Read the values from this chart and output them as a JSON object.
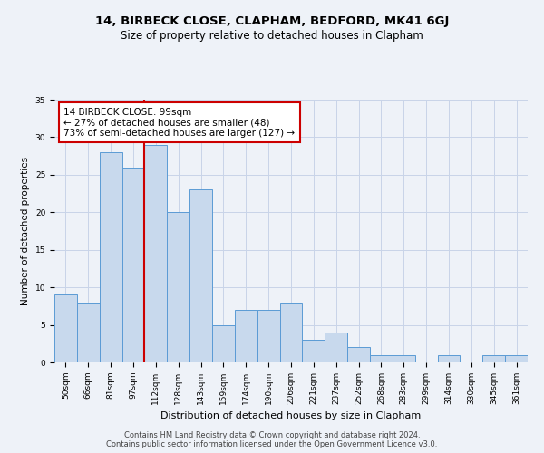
{
  "title": "14, BIRBECK CLOSE, CLAPHAM, BEDFORD, MK41 6GJ",
  "subtitle": "Size of property relative to detached houses in Clapham",
  "xlabel": "Distribution of detached houses by size in Clapham",
  "ylabel": "Number of detached properties",
  "categories": [
    "50sqm",
    "66sqm",
    "81sqm",
    "97sqm",
    "112sqm",
    "128sqm",
    "143sqm",
    "159sqm",
    "174sqm",
    "190sqm",
    "206sqm",
    "221sqm",
    "237sqm",
    "252sqm",
    "268sqm",
    "283sqm",
    "299sqm",
    "314sqm",
    "330sqm",
    "345sqm",
    "361sqm"
  ],
  "values": [
    9,
    8,
    28,
    26,
    29,
    20,
    23,
    5,
    7,
    7,
    8,
    3,
    4,
    2,
    1,
    1,
    0,
    1,
    0,
    1,
    1
  ],
  "bar_color": "#c8d9ed",
  "bar_edge_color": "#5b9bd5",
  "bar_edge_width": 0.7,
  "red_line_x": 3.5,
  "annotation_text": "14 BIRBECK CLOSE: 99sqm\n← 27% of detached houses are smaller (48)\n73% of semi-detached houses are larger (127) →",
  "annotation_box_color": "#ffffff",
  "annotation_box_edge_color": "#cc0000",
  "red_line_color": "#cc0000",
  "ylim": [
    0,
    35
  ],
  "yticks": [
    0,
    5,
    10,
    15,
    20,
    25,
    30,
    35
  ],
  "grid_color": "#c8d4e8",
  "background_color": "#eef2f8",
  "footer_text": "Contains HM Land Registry data © Crown copyright and database right 2024.\nContains public sector information licensed under the Open Government Licence v3.0.",
  "title_fontsize": 9.5,
  "subtitle_fontsize": 8.5,
  "xlabel_fontsize": 8,
  "ylabel_fontsize": 7.5,
  "tick_fontsize": 6.5,
  "annotation_fontsize": 7.5,
  "footer_fontsize": 6
}
